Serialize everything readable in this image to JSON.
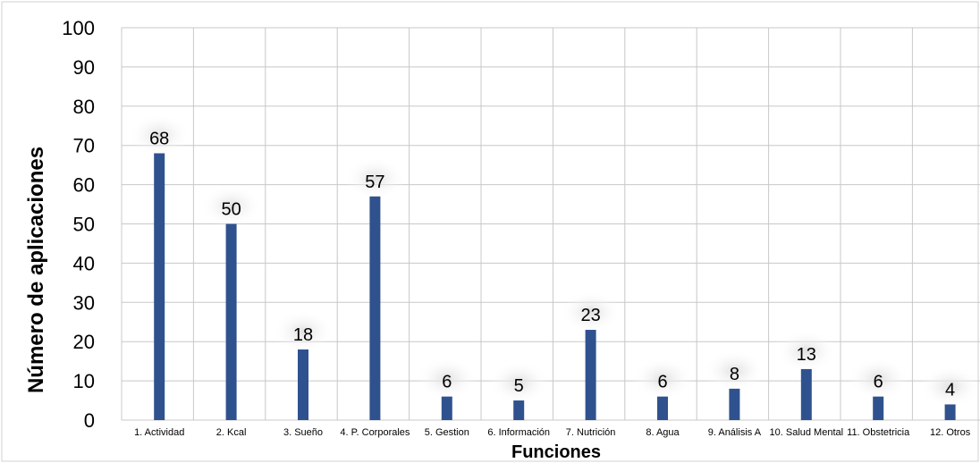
{
  "chart_data": {
    "type": "bar",
    "categories": [
      "1. Actividad",
      "2. Kcal",
      "3. Sueño",
      "4. P. Corporales",
      "5. Gestion",
      "6. Información",
      "7. Nutrición",
      "8. Agua",
      "9. Análisis A",
      "10. Salud Mental",
      "11. Obstetricia",
      "12. Otros"
    ],
    "values": [
      68,
      50,
      18,
      57,
      6,
      5,
      23,
      6,
      8,
      13,
      6,
      4
    ],
    "xlabel": "Funciones",
    "ylabel": "Número de aplicaciones",
    "ylim": [
      0,
      100
    ],
    "yticks": [
      0,
      10,
      20,
      30,
      40,
      50,
      60,
      70,
      80,
      90,
      100
    ],
    "grid": true,
    "bar_color": "#2f528f",
    "grid_color": "#c8c8c8"
  }
}
